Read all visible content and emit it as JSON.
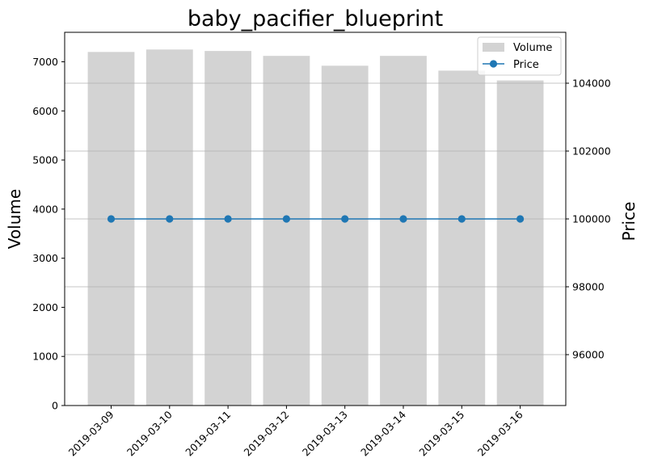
{
  "chart_data": {
    "type": "bar+line",
    "title": "baby_pacifier_blueprint",
    "categories": [
      "2019-03-09",
      "2019-03-10",
      "2019-03-11",
      "2019-03-12",
      "2019-03-13",
      "2019-03-14",
      "2019-03-15",
      "2019-03-16"
    ],
    "series": [
      {
        "name": "Volume",
        "type": "bar",
        "axis": "left",
        "color": "#d3d3d3",
        "values": [
          7200,
          7250,
          7220,
          7120,
          6920,
          7120,
          6820,
          6620
        ]
      },
      {
        "name": "Price",
        "type": "line",
        "axis": "right",
        "color": "#1f77b4",
        "marker": "circle",
        "values": [
          100000,
          100000,
          100000,
          100000,
          100000,
          100000,
          100000,
          100000
        ]
      }
    ],
    "ylabel": "Volume",
    "ylabel_right": "Price",
    "ylim": [
      0,
      7600
    ],
    "ylim_right": [
      94500,
      105500
    ],
    "yticks": [
      0,
      1000,
      2000,
      3000,
      4000,
      5000,
      6000,
      7000
    ],
    "yticks_right": [
      96000,
      98000,
      100000,
      102000,
      104000
    ],
    "xtick_rotation_deg": 45,
    "grid": "horizontal, right axis",
    "legend_position": "top-right"
  }
}
